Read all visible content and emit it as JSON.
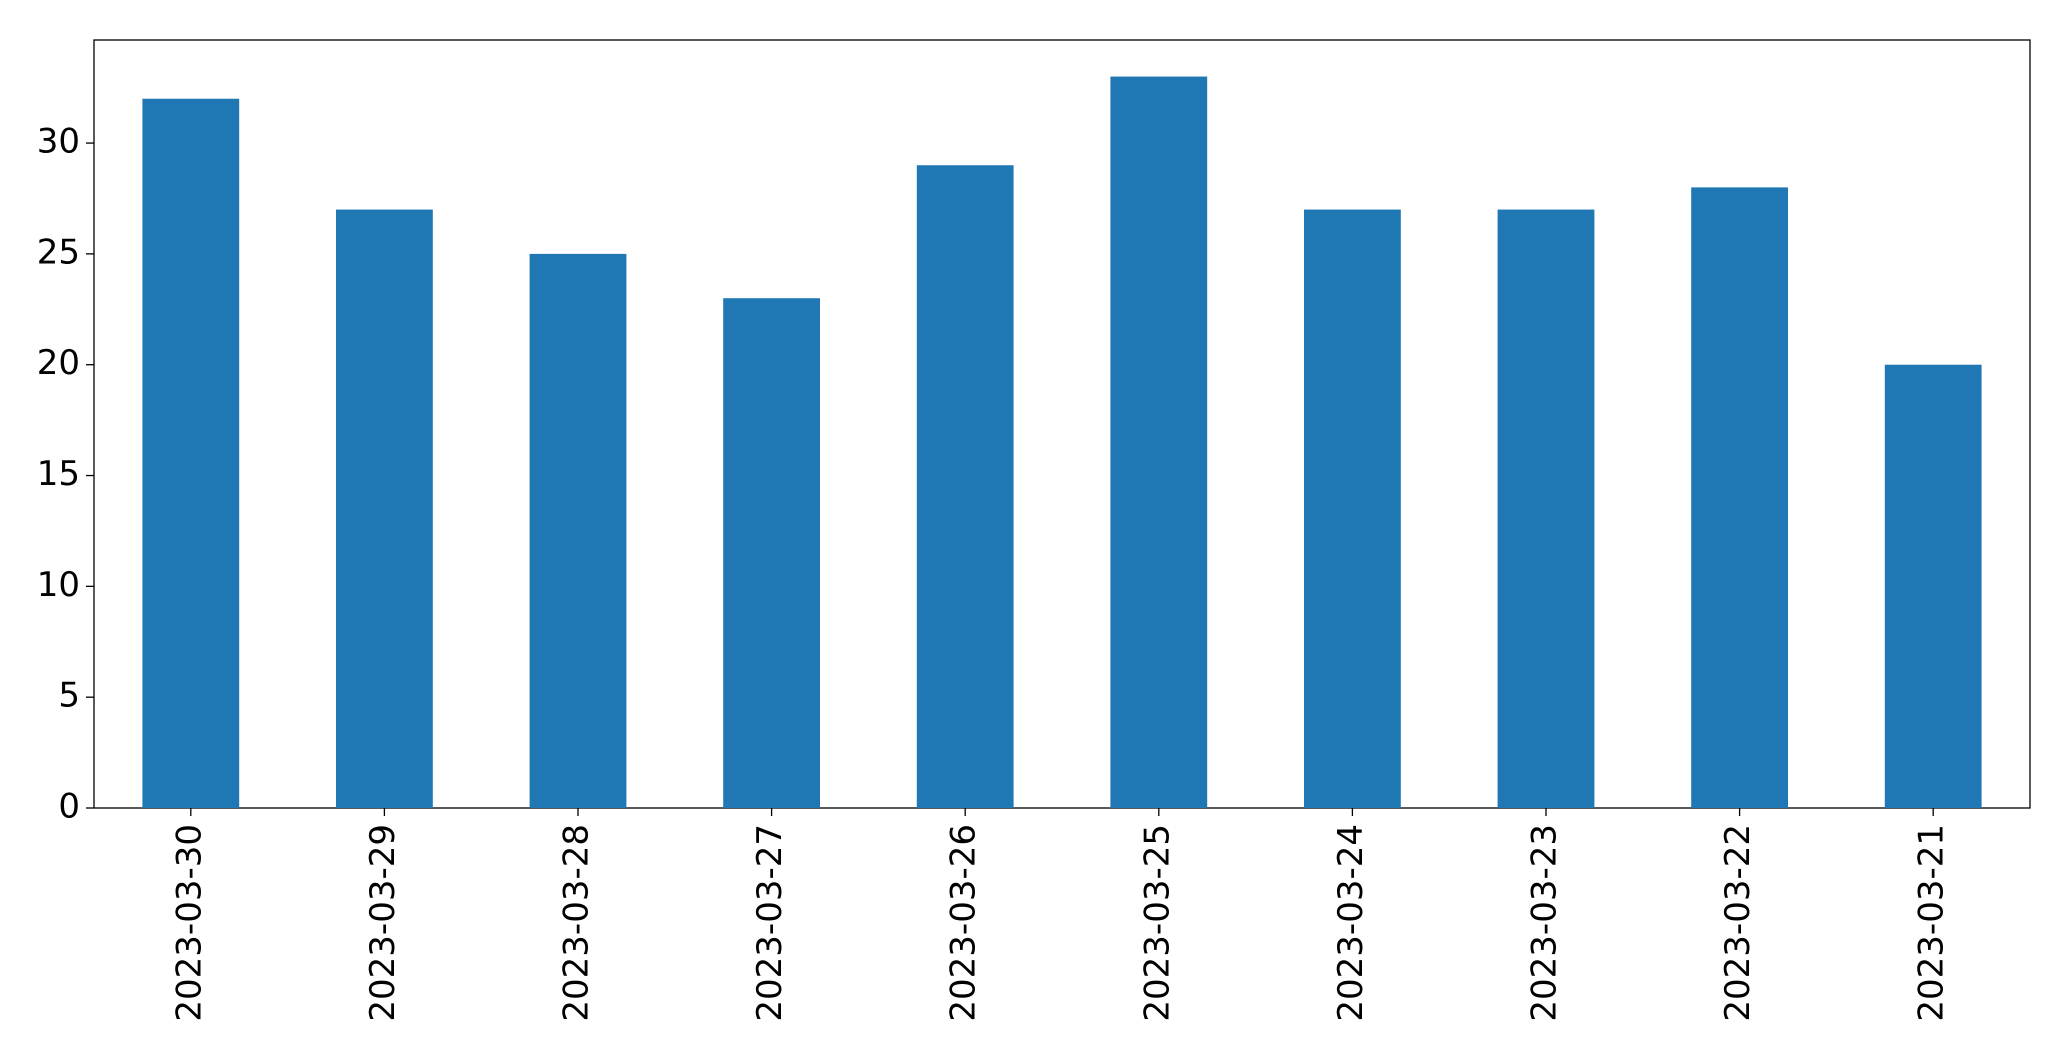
{
  "chart_data": {
    "type": "bar",
    "categories": [
      "2023-03-30",
      "2023-03-29",
      "2023-03-28",
      "2023-03-27",
      "2023-03-26",
      "2023-03-25",
      "2023-03-24",
      "2023-03-23",
      "2023-03-22",
      "2023-03-21"
    ],
    "values": [
      32,
      27,
      25,
      23,
      29,
      33,
      27,
      27,
      28,
      20
    ],
    "color": "#1f77b4",
    "ylim": [
      0,
      34.65
    ],
    "yticks": [
      0,
      5,
      10,
      15,
      20,
      25,
      30
    ],
    "grid": false
  }
}
